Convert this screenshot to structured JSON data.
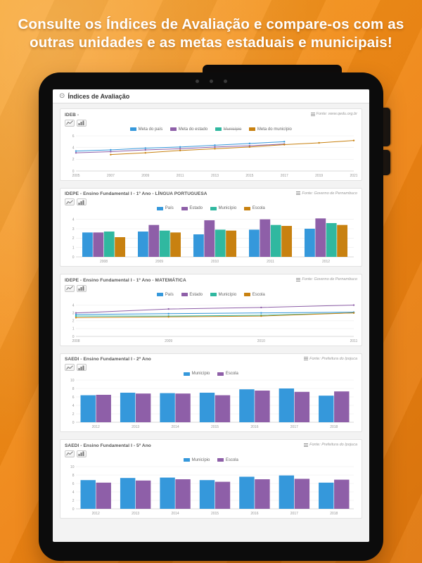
{
  "banner": {
    "line1": "Consulte os Índices de Avaliação e compare-os com as",
    "line2": "outras unidades e as metas estaduais e municipais!"
  },
  "app": {
    "header_title": "Índices de Avaliação"
  },
  "icons": {
    "app_logo_icon": "⊙",
    "source_icon": "table-grid",
    "line_chart_icon": "line-chart",
    "bar_chart_icon": "bar-chart"
  },
  "colors": {
    "background_orange": "#ee8413",
    "series_blue": "#3598db",
    "series_purple": "#8e5fa8",
    "series_teal": "#30b8a0",
    "series_orange": "#c88110"
  },
  "cards": [
    {
      "title": "IDEB -",
      "source": "Fonte: www.qedu.org.br",
      "chart": {
        "type": "line",
        "x": [
          "2005",
          "2007",
          "2009",
          "2011",
          "2013",
          "2015",
          "2017",
          "2019",
          "2021"
        ],
        "ylim": [
          0,
          6
        ],
        "yticks": [
          0,
          2,
          4,
          6
        ],
        "series": [
          {
            "name": "Meta do país",
            "color": "#3598db",
            "values": [
              3.4,
              3.6,
              3.9,
              4.1,
              4.4,
              4.7,
              5.0,
              null,
              null
            ]
          },
          {
            "name": "Meta do estado",
            "color": "#8e5fa8",
            "values": [
              3.1,
              3.3,
              3.6,
              3.8,
              4.1,
              4.3,
              4.6,
              null,
              null
            ]
          },
          {
            "name": "Município",
            "color": "#30b8a0",
            "disabled": true,
            "values": [
              null,
              null,
              null,
              null,
              null,
              null,
              null,
              null,
              null
            ]
          },
          {
            "name": "Meta do município",
            "color": "#c88110",
            "values": [
              null,
              2.8,
              3.1,
              3.5,
              3.8,
              4.1,
              4.5,
              4.8,
              5.2
            ]
          }
        ]
      }
    },
    {
      "title": "IDEPE - Ensino Fundamental I - 1º Ano - LÍNGUA PORTUGUESA",
      "source": "Fonte: Governo de Pernambuco",
      "chart": {
        "type": "bar",
        "categories": [
          "2008",
          "2009",
          "2010",
          "2011",
          "2012"
        ],
        "ylim": [
          0,
          4.5
        ],
        "yticks": [
          0,
          1,
          2,
          3,
          4
        ],
        "series": [
          {
            "name": "País",
            "color": "#3598db",
            "values": [
              2.6,
              2.7,
              2.4,
              2.9,
              3.0
            ]
          },
          {
            "name": "Estado",
            "color": "#8e5fa8",
            "values": [
              2.6,
              3.4,
              3.9,
              4.0,
              4.1
            ]
          },
          {
            "name": "Município",
            "color": "#30b8a0",
            "values": [
              2.7,
              2.8,
              2.9,
              3.4,
              3.6
            ]
          },
          {
            "name": "Escola",
            "color": "#c88110",
            "values": [
              2.1,
              2.6,
              2.8,
              3.3,
              3.4
            ]
          }
        ]
      }
    },
    {
      "title": "IDEPE - Ensino Fundamental I - 1º Ano - MATEMÁTICA",
      "source": "Fonte: Governo de Pernambuco",
      "chart": {
        "type": "line",
        "x": [
          "2008",
          "2009",
          "2010",
          "2011"
        ],
        "ylim": [
          0,
          4.5
        ],
        "yticks": [
          0,
          1,
          2,
          3,
          4
        ],
        "series": [
          {
            "name": "País",
            "color": "#3598db",
            "values": [
              2.8,
              2.9,
              3.0,
              3.1
            ]
          },
          {
            "name": "Estado",
            "color": "#8e5fa8",
            "values": [
              3.0,
              3.5,
              3.7,
              4.0
            ]
          },
          {
            "name": "Município",
            "color": "#30b8a0",
            "values": [
              2.6,
              2.6,
              2.7,
              3.0
            ]
          },
          {
            "name": "Escola",
            "color": "#c88110",
            "values": [
              2.4,
              2.5,
              2.6,
              3.0
            ]
          }
        ]
      }
    },
    {
      "title": "SAEDI - Ensino Fundamental I - 2º Ano",
      "source": "Fonte: Prefeitura do Ipojuca",
      "chart": {
        "type": "bar",
        "categories": [
          "2012",
          "2013",
          "2014",
          "2015",
          "2016",
          "2017",
          "2018"
        ],
        "ylim": [
          0,
          10
        ],
        "yticks": [
          0,
          2,
          4,
          6,
          8,
          10
        ],
        "series": [
          {
            "name": "Município",
            "color": "#3598db",
            "values": [
              6.4,
              7.0,
              6.9,
              7.0,
              7.8,
              8.0,
              6.3
            ]
          },
          {
            "name": "Escola",
            "color": "#8e5fa8",
            "values": [
              6.5,
              6.8,
              6.8,
              6.4,
              7.5,
              7.2,
              7.3
            ]
          }
        ]
      }
    },
    {
      "title": "SAEDI - Ensino Fundamental I - 5º Ano",
      "source": "Fonte: Prefeitura do Ipojuca",
      "chart": {
        "type": "bar",
        "categories": [
          "2012",
          "2013",
          "2014",
          "2015",
          "2016",
          "2017",
          "2018"
        ],
        "ylim": [
          0,
          10
        ],
        "yticks": [
          0,
          2,
          4,
          6,
          8,
          10
        ],
        "series": [
          {
            "name": "Município",
            "color": "#3598db",
            "values": [
              6.8,
              7.3,
              7.4,
              6.8,
              7.6,
              7.9,
              6.2
            ]
          },
          {
            "name": "Escola",
            "color": "#8e5fa8",
            "values": [
              6.2,
              6.7,
              7.0,
              6.4,
              7.0,
              7.1,
              6.9
            ]
          }
        ]
      }
    }
  ]
}
